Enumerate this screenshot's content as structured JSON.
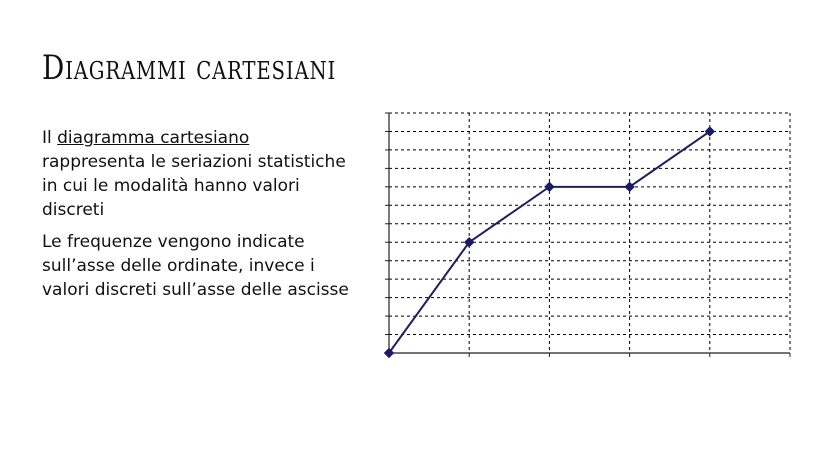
{
  "slide": {
    "title": "Diagrammi cartesiani",
    "paragraph1": {
      "prefix": "Il ",
      "underlined": "diagramma cartesiano",
      "suffix": " rappresenta le seriazioni statistiche in cui le modalità hanno valori discreti"
    },
    "paragraph2": "Le frequenze vengono indicate sull’asse delle ordinate, invece i valori discreti sull’asse delle ascisse"
  },
  "chart_data": {
    "type": "line",
    "title": "",
    "xlabel": "",
    "ylabel": "",
    "x": [
      0,
      1,
      2,
      3,
      4
    ],
    "y": [
      0,
      6,
      9,
      9,
      12
    ],
    "xlim": [
      0,
      5
    ],
    "ylim": [
      0,
      13
    ],
    "grid": true,
    "line_color": "#1f1f5c",
    "marker_color": "#1a1a66",
    "grid_color": "#000000"
  }
}
